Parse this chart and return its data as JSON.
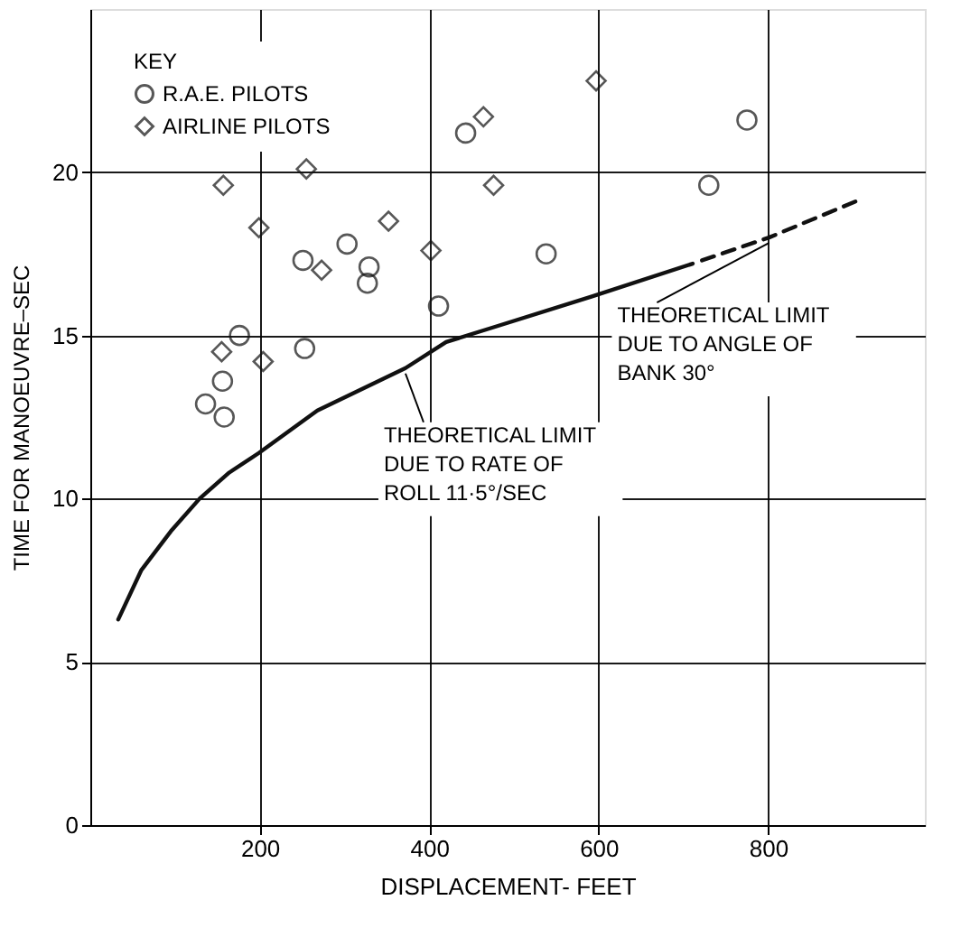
{
  "chart_data": {
    "type": "scatter",
    "xlabel": "DISPLACEMENT- FEET",
    "ylabel": "TIME FOR MANOEUVRE–SEC",
    "legend_title": "KEY",
    "xlim": [
      0,
      985
    ],
    "ylim": [
      0,
      25
    ],
    "xticks": [
      200,
      400,
      600,
      800
    ],
    "yticks": [
      0,
      5,
      10,
      15,
      20
    ],
    "grid": true,
    "legend": "top left",
    "series": [
      {
        "name": "R.A.E. PILOTS",
        "color": "#111111",
        "marker": "circle",
        "x": [
          443,
          303,
          251,
          329,
          327,
          411,
          176,
          253,
          156,
          136,
          158,
          775,
          730,
          538
        ],
        "values": [
          21.2,
          17.8,
          17.3,
          17.1,
          16.6,
          15.9,
          15.0,
          14.6,
          13.6,
          12.9,
          12.5,
          21.6,
          19.6,
          17.5
        ]
      },
      {
        "name": "AIRLINE PILOTS",
        "color": "#111111",
        "marker": "diamond",
        "x": [
          464,
          157,
          255,
          476,
          199,
          352,
          273,
          402,
          597,
          155,
          204
        ],
        "values": [
          21.7,
          19.6,
          20.1,
          19.6,
          18.3,
          18.5,
          17.0,
          17.6,
          22.8,
          14.5,
          14.2
        ]
      },
      {
        "type": "line",
        "color": "#111111",
        "line_style": "solid",
        "x": [
          33,
          60,
          95,
          129,
          164,
          199,
          268,
          372,
          420,
          482,
          593,
          711
        ],
        "values": [
          6.3,
          7.8,
          9.0,
          10.0,
          10.8,
          11.4,
          12.7,
          14.0,
          14.8,
          15.3,
          16.2,
          17.2
        ]
      },
      {
        "type": "line",
        "color": "#111111",
        "line_style": "dashed",
        "x": [
          722,
          801,
          912
        ],
        "values": [
          17.3,
          18.0,
          19.2
        ]
      }
    ],
    "annotations": [
      {
        "text": "THEORETICAL LIMIT\nDUE TO RATE OF\nROLL 11·5°/SEC",
        "x": 372,
        "y": 14.0
      },
      {
        "text": "THEORETICAL LIMIT\nDUE TO ANGLE OF\nBANK 30°",
        "x": 801,
        "y": 18.0
      }
    ]
  }
}
